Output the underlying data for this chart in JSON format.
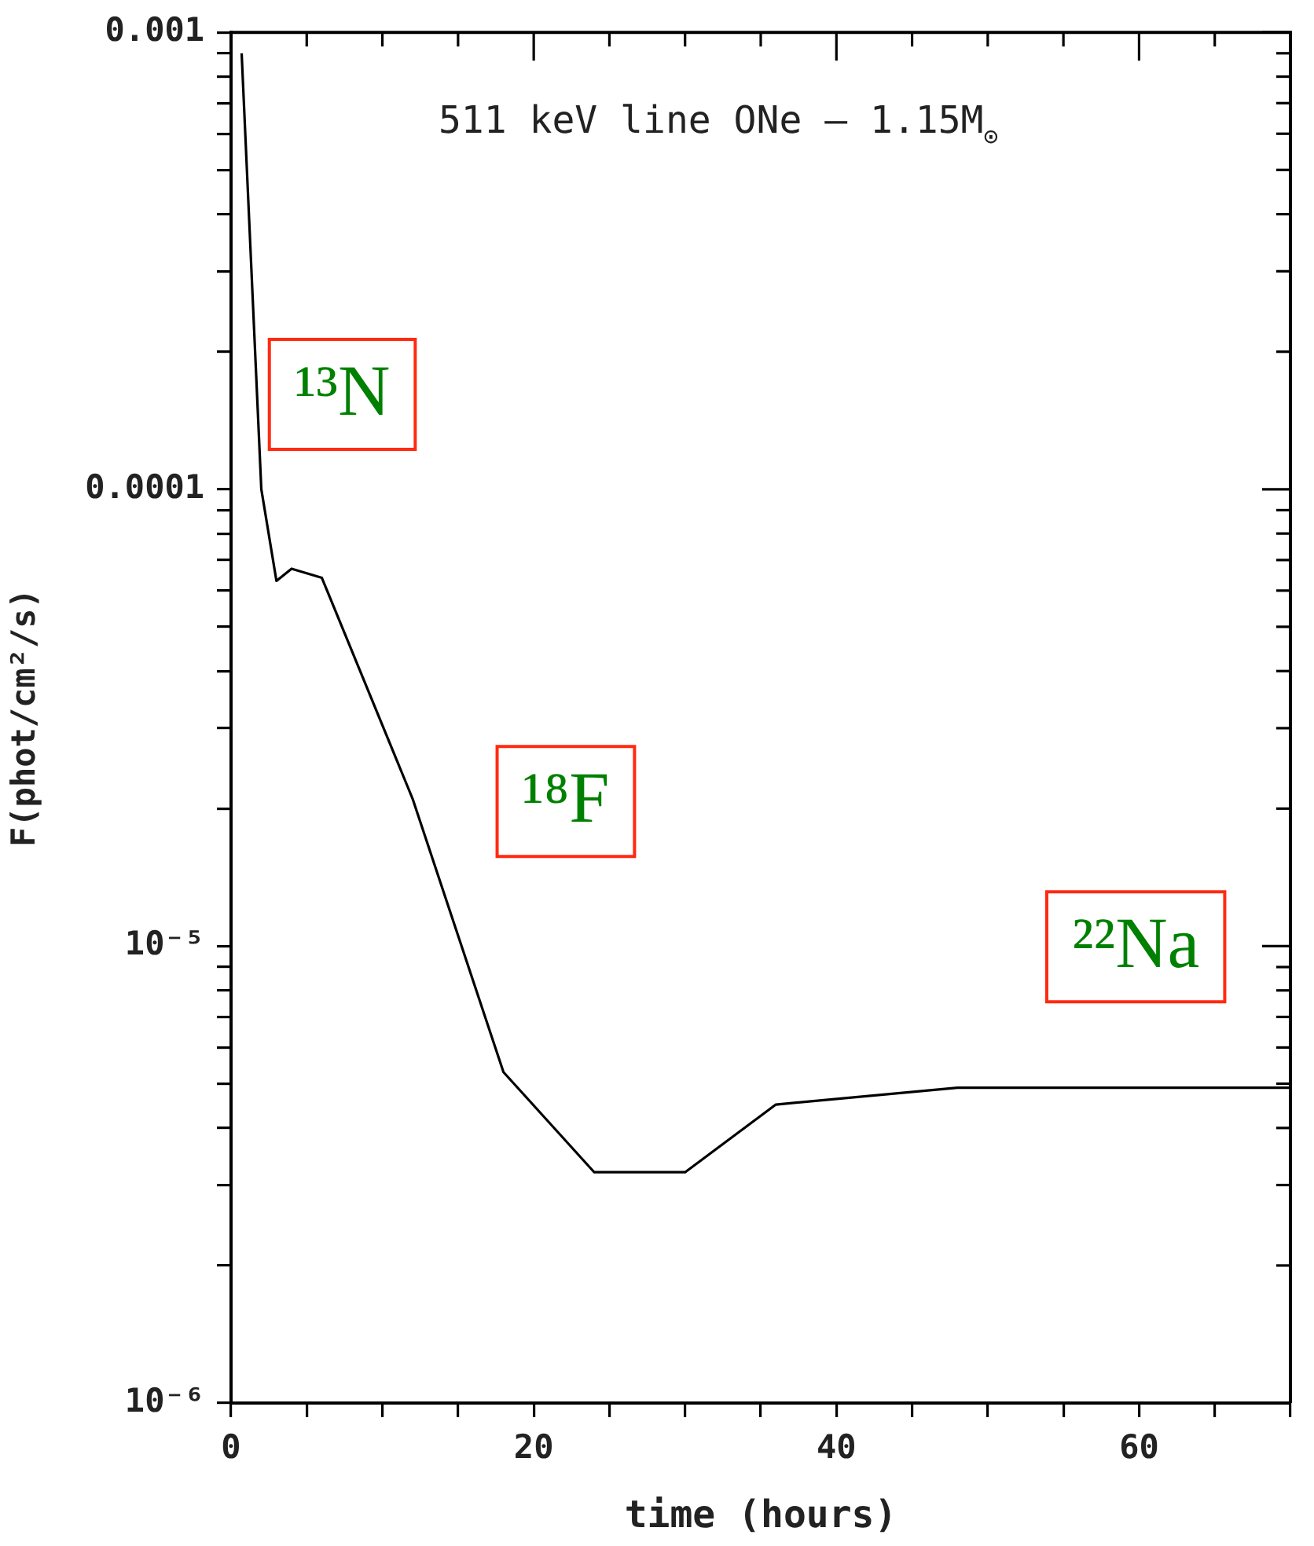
{
  "chart_data": {
    "type": "line",
    "title": "511 keV line ONe – 1.15M$_{⊙}$",
    "xlabel": "time (hours)",
    "ylabel": "F(phot/cm²/s)",
    "x": [
      0.7,
      2,
      3,
      4,
      6,
      12,
      18,
      24,
      30,
      36,
      48,
      70
    ],
    "series": [
      {
        "color": "#000000",
        "values": [
          0.0009,
          0.0001,
          6.3e-05,
          6.7e-05,
          6.4e-05,
          2.1e-05,
          5.3e-06,
          3.2e-06,
          3.2e-06,
          4.5e-06,
          4.9e-06,
          4.9e-06
        ]
      }
    ],
    "log": "y",
    "xlim": [
      0,
      70
    ],
    "ylim": [
      1e-06,
      0.001
    ],
    "xticks": [
      0,
      {
        "value": 5,
        "label": null
      },
      {
        "value": 10,
        "label": null
      },
      {
        "value": 15,
        "label": null
      },
      20,
      {
        "value": 25,
        "label": null
      },
      {
        "value": 30,
        "label": null
      },
      {
        "value": 35,
        "label": null
      },
      40,
      {
        "value": 45,
        "label": null
      },
      {
        "value": 50,
        "label": null
      },
      {
        "value": 55,
        "label": null
      },
      60,
      {
        "value": 65,
        "label": null
      },
      {
        "value": 70,
        "label": null
      }
    ],
    "yticks": [
      {
        "value": 1e-06,
        "label": "10⁻⁶"
      },
      {
        "value": 2e-06,
        "label": null
      },
      {
        "value": 3e-06,
        "label": null
      },
      {
        "value": 4e-06,
        "label": null
      },
      {
        "value": 5e-06,
        "label": null
      },
      {
        "value": 6e-06,
        "label": null
      },
      {
        "value": 7e-06,
        "label": null
      },
      {
        "value": 8e-06,
        "label": null
      },
      {
        "value": 9e-06,
        "label": null
      },
      {
        "value": 1e-05,
        "label": "10⁻⁵"
      },
      {
        "value": 2e-05,
        "label": null
      },
      {
        "value": 3e-05,
        "label": null
      },
      {
        "value": 4e-05,
        "label": null
      },
      {
        "value": 5e-05,
        "label": null
      },
      {
        "value": 6e-05,
        "label": null
      },
      {
        "value": 7e-05,
        "label": null
      },
      {
        "value": 8e-05,
        "label": null
      },
      {
        "value": 9e-05,
        "label": null
      },
      0.0001,
      {
        "value": 0.0002,
        "label": null
      },
      {
        "value": 0.0003,
        "label": null
      },
      {
        "value": 0.0004,
        "label": null
      },
      {
        "value": 0.0005,
        "label": null
      },
      {
        "value": 0.0006,
        "label": null
      },
      {
        "value": 0.0007,
        "label": null
      },
      {
        "value": 0.0008,
        "label": null
      },
      {
        "value": 0.0009,
        "label": null
      },
      0.001
    ],
    "annotations": [
      "¹³N",
      "¹⁸F",
      "²²Na"
    ],
    "grid": false,
    "legend": false,
    "marker": "none",
    "line_style": "solid"
  }
}
